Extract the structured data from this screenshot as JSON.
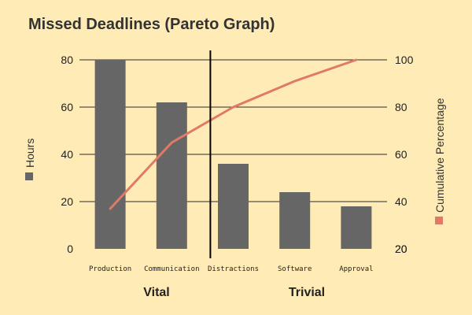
{
  "chart_data": {
    "type": "bar",
    "title": "Missed Deadlines (Pareto Graph)",
    "categories": [
      "Production",
      "Communication",
      "Distractions",
      "Software",
      "Approval"
    ],
    "series": [
      {
        "name": "Hours",
        "type": "bar",
        "axis": "left",
        "values": [
          80,
          62,
          36,
          24,
          18
        ],
        "color": "#666666"
      },
      {
        "name": "Cumulative Percentage",
        "type": "line",
        "axis": "right",
        "values": [
          37,
          65,
          80,
          91,
          100
        ],
        "color": "#e07966"
      }
    ],
    "ylabel": "Hours",
    "y2label": "Cumulative Percentage",
    "ylim": [
      0,
      80
    ],
    "y2lim": [
      20,
      100
    ],
    "yticks": [
      "0",
      "20",
      "40",
      "60",
      "80"
    ],
    "y2ticks": [
      "20",
      "20",
      "40",
      "60",
      "80",
      "100"
    ],
    "y2tick_values": [
      20,
      20,
      40,
      60,
      80,
      100
    ],
    "groups": [
      {
        "label": "Vital",
        "categories": [
          "Production",
          "Communication"
        ]
      },
      {
        "label": "Trivial",
        "categories": [
          "Distractions",
          "Software",
          "Approval"
        ]
      }
    ],
    "divider_between": [
      "Communication",
      "Distractions"
    ],
    "grid": true,
    "background": "#ffebb5"
  }
}
